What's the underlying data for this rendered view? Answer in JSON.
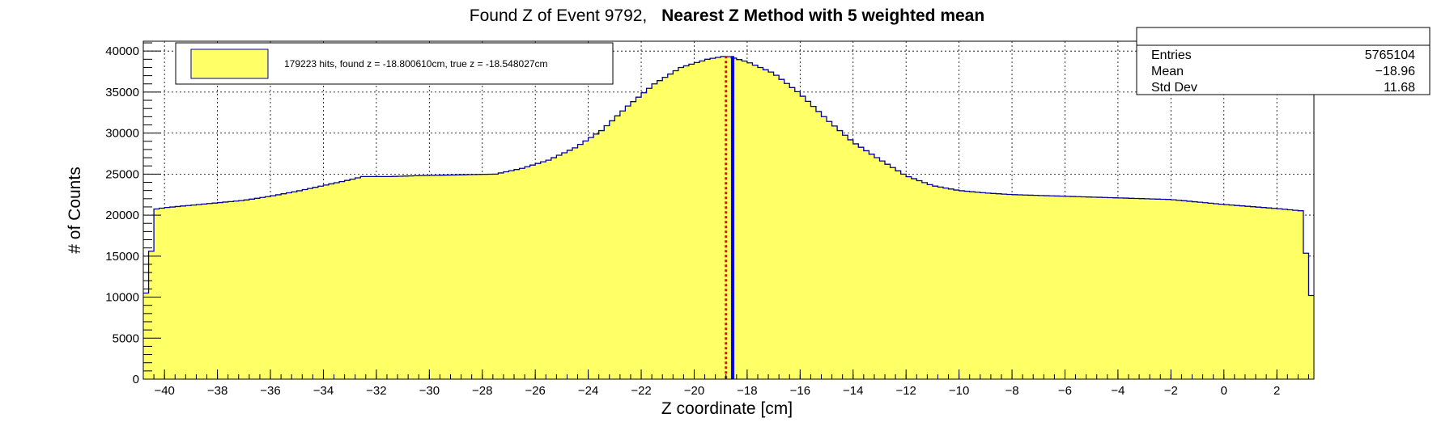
{
  "chart_data": {
    "type": "histogram",
    "title_normal": "Found Z of Event 9792,",
    "title_bold": "Nearest Z Method with 5 weighted mean",
    "xlabel": "Z coordinate [cm]",
    "ylabel": "# of Counts",
    "xlim": [
      -40.8,
      3.4
    ],
    "ylim": [
      0,
      41200
    ],
    "x_ticks": [
      -40,
      -38,
      -36,
      -34,
      -32,
      -30,
      -28,
      -26,
      -24,
      -22,
      -20,
      -18,
      -16,
      -14,
      -12,
      -10,
      -8,
      -6,
      -4,
      -2,
      0,
      2
    ],
    "y_ticks": [
      0,
      5000,
      10000,
      15000,
      20000,
      25000,
      30000,
      35000,
      40000
    ],
    "grid": true,
    "fill_color": "#ffff66",
    "line_color": "#000099",
    "bin_width": 0.2,
    "profile": [
      [
        -40.8,
        10500
      ],
      [
        -40.6,
        10500
      ],
      [
        -40.4,
        20700
      ],
      [
        -40.0,
        20900
      ],
      [
        -39.0,
        21200
      ],
      [
        -38.0,
        21500
      ],
      [
        -37.0,
        21800
      ],
      [
        -36.0,
        22300
      ],
      [
        -35.0,
        22900
      ],
      [
        -34.0,
        23600
      ],
      [
        -33.0,
        24300
      ],
      [
        -32.5,
        24700
      ],
      [
        -31.5,
        24700
      ],
      [
        -30.5,
        24800
      ],
      [
        -29.0,
        24900
      ],
      [
        -27.5,
        25000
      ],
      [
        -26.5,
        25700
      ],
      [
        -25.5,
        26700
      ],
      [
        -24.5,
        28200
      ],
      [
        -23.5,
        30300
      ],
      [
        -22.5,
        33300
      ],
      [
        -21.5,
        36000
      ],
      [
        -20.5,
        38000
      ],
      [
        -19.5,
        39000
      ],
      [
        -18.8,
        39400
      ],
      [
        -18.0,
        38700
      ],
      [
        -17.0,
        37300
      ],
      [
        -16.0,
        34800
      ],
      [
        -15.0,
        31700
      ],
      [
        -14.0,
        28900
      ],
      [
        -13.0,
        26800
      ],
      [
        -12.0,
        24800
      ],
      [
        -11.0,
        23600
      ],
      [
        -10.0,
        23000
      ],
      [
        -9.0,
        22700
      ],
      [
        -8.0,
        22500
      ],
      [
        -6.0,
        22300
      ],
      [
        -4.0,
        22100
      ],
      [
        -2.0,
        21900
      ],
      [
        0.0,
        21300
      ],
      [
        2.0,
        20800
      ],
      [
        3.0,
        20500
      ],
      [
        3.2,
        10200
      ],
      [
        3.4,
        10200
      ]
    ],
    "markers": [
      {
        "name": "found z",
        "x": -18.80061,
        "color": "#ff0000",
        "style": "dotted"
      },
      {
        "name": "true z",
        "x": -18.548027,
        "color": "#0000ff",
        "style": "solid"
      }
    ],
    "legend": {
      "position": "top-left",
      "text": "179223 hits, found z = -18.800610cm, true z = -18.548027cm"
    },
    "stats": {
      "position": "top-right",
      "rows": [
        {
          "label": "Entries",
          "value": "5765104"
        },
        {
          "label": "Mean",
          "value": "−18.96"
        },
        {
          "label": "Std Dev",
          "value": "11.68"
        }
      ]
    }
  }
}
